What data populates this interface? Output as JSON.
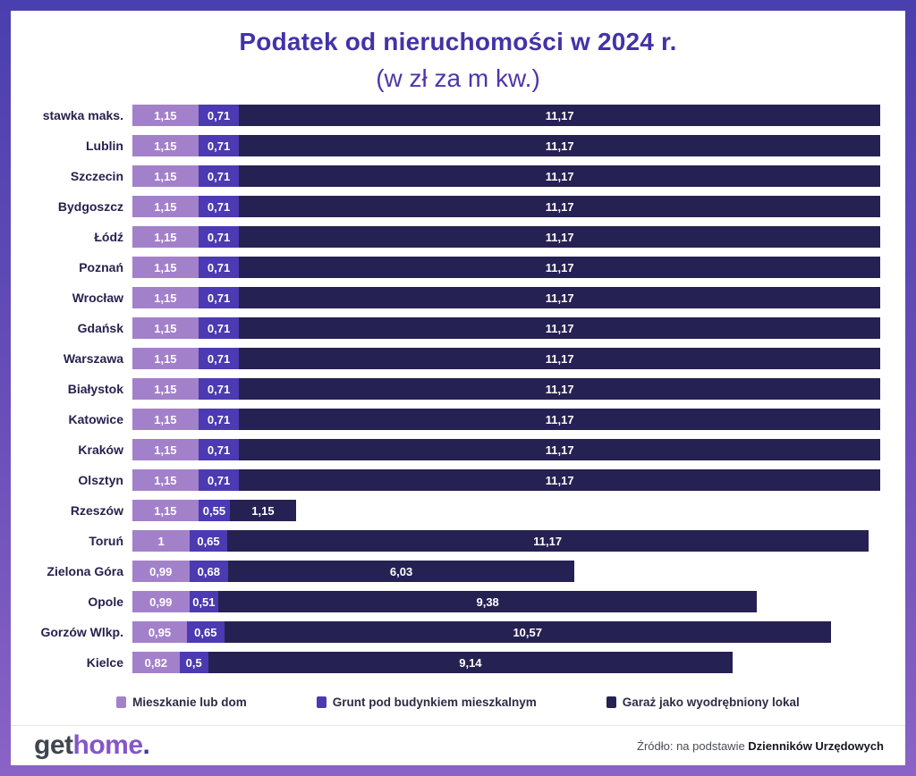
{
  "header": {
    "title": "Podatek od nieruchomości w 2024 r.",
    "subtitle": "(w zł za m kw.)"
  },
  "chart_data": {
    "type": "bar",
    "orientation": "horizontal",
    "stacked": true,
    "unit": "zł za m kw.",
    "grid": false,
    "legend_position": "bottom",
    "xlim": [
      0,
      13.03
    ],
    "categories": [
      "stawka maks.",
      "Lublin",
      "Szczecin",
      "Bydgoszcz",
      "Łódź",
      "Poznań",
      "Wrocław",
      "Gdańsk",
      "Warszawa",
      "Białystok",
      "Katowice",
      "Kraków",
      "Olsztyn",
      "Rzeszów",
      "Toruń",
      "Zielona Góra",
      "Opole",
      "Gorzów Wlkp.",
      "Kielce"
    ],
    "series": [
      {
        "name": "Mieszkanie lub dom",
        "color": "#a381ca",
        "values": [
          1.15,
          1.15,
          1.15,
          1.15,
          1.15,
          1.15,
          1.15,
          1.15,
          1.15,
          1.15,
          1.15,
          1.15,
          1.15,
          1.15,
          1,
          0.99,
          0.99,
          0.95,
          0.82
        ]
      },
      {
        "name": "Grunt pod budynkiem mieszkalnym",
        "color": "#4b3ab1",
        "values": [
          0.71,
          0.71,
          0.71,
          0.71,
          0.71,
          0.71,
          0.71,
          0.71,
          0.71,
          0.71,
          0.71,
          0.71,
          0.71,
          0.55,
          0.65,
          0.68,
          0.51,
          0.65,
          0.5
        ]
      },
      {
        "name": "Garaż jako wyodrębniony lokal",
        "color": "#262153",
        "values": [
          11.17,
          11.17,
          11.17,
          11.17,
          11.17,
          11.17,
          11.17,
          11.17,
          11.17,
          11.17,
          11.17,
          11.17,
          11.17,
          1.15,
          11.17,
          6.03,
          9.38,
          10.57,
          9.14
        ]
      }
    ],
    "value_labels": [
      [
        "1,15",
        "0,71",
        "11,17"
      ],
      [
        "1,15",
        "0,71",
        "11,17"
      ],
      [
        "1,15",
        "0,71",
        "11,17"
      ],
      [
        "1,15",
        "0,71",
        "11,17"
      ],
      [
        "1,15",
        "0,71",
        "11,17"
      ],
      [
        "1,15",
        "0,71",
        "11,17"
      ],
      [
        "1,15",
        "0,71",
        "11,17"
      ],
      [
        "1,15",
        "0,71",
        "11,17"
      ],
      [
        "1,15",
        "0,71",
        "11,17"
      ],
      [
        "1,15",
        "0,71",
        "11,17"
      ],
      [
        "1,15",
        "0,71",
        "11,17"
      ],
      [
        "1,15",
        "0,71",
        "11,17"
      ],
      [
        "1,15",
        "0,71",
        "11,17"
      ],
      [
        "1,15",
        "0,55",
        "1,15"
      ],
      [
        "1",
        "0,65",
        "11,17"
      ],
      [
        "0,99",
        "0,68",
        "6,03"
      ],
      [
        "0,99",
        "0,51",
        "9,38"
      ],
      [
        "0,95",
        "0,65",
        "10,57"
      ],
      [
        "0,82",
        "0,5",
        "9,14"
      ]
    ]
  },
  "footer": {
    "logo": {
      "part1": "get",
      "part2": "home",
      "part3": "."
    },
    "source_prefix": "Źródło: na podstawie ",
    "source_bold": "Dzienników Urzędowych"
  },
  "colors": {
    "frame_gradient_top": "#4a3fae",
    "frame_gradient_bottom": "#8a63c6",
    "title_text": "#4233a8",
    "category_text": "#26224e",
    "bar_value_text": "#ffffff",
    "legend_text": "#2f2b45",
    "logo_get": "#3e454d",
    "logo_home": "#8456c8",
    "logo_dot": "#4633a8"
  }
}
